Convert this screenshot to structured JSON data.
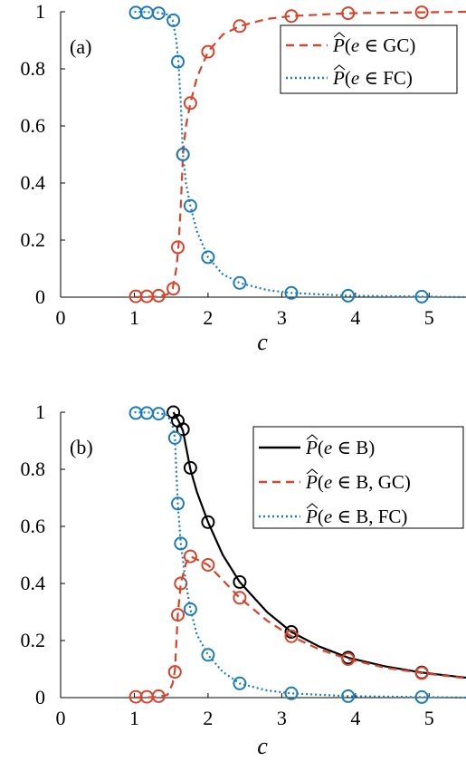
{
  "colors": {
    "gc": "#d9432a",
    "fc": "#1a7cc1",
    "b": "#000000"
  },
  "chart_data": [
    {
      "type": "line",
      "panel_label": "(a)",
      "xlabel": "c",
      "ylabel": "",
      "xlim": [
        0,
        5.5
      ],
      "ylim": [
        0,
        1
      ],
      "xticks": [
        0,
        1,
        2,
        3,
        4,
        5
      ],
      "yticks": [
        0,
        0.2,
        0.4,
        0.6,
        0.8,
        1
      ],
      "ytick_labels": [
        "0",
        "0.2",
        "0.4",
        "0.6",
        "0.8",
        "1"
      ],
      "legend_position": "top-right",
      "series": [
        {
          "key": "gc",
          "name": "P̂(e ∈ GC)",
          "legend_parts": {
            "func": "P",
            "var": "e",
            "set": "GC"
          },
          "style": "dashed",
          "color_key": "gc",
          "curve": [
            [
              1.0,
              0
            ],
            [
              1.3,
              0.002
            ],
            [
              1.45,
              0.01
            ],
            [
              1.52,
              0.03
            ],
            [
              1.57,
              0.1
            ],
            [
              1.6,
              0.18
            ],
            [
              1.63,
              0.32
            ],
            [
              1.66,
              0.5
            ],
            [
              1.7,
              0.6
            ],
            [
              1.76,
              0.68
            ],
            [
              1.85,
              0.77
            ],
            [
              2.0,
              0.86
            ],
            [
              2.2,
              0.92
            ],
            [
              2.43,
              0.95
            ],
            [
              2.8,
              0.975
            ],
            [
              3.13,
              0.985
            ],
            [
              3.9,
              0.995
            ],
            [
              4.9,
              0.998
            ],
            [
              5.5,
              1.0
            ]
          ],
          "markers": [
            [
              1.02,
              0.003
            ],
            [
              1.17,
              0.003
            ],
            [
              1.33,
              0.005
            ],
            [
              1.53,
              0.03
            ],
            [
              1.59,
              0.175
            ],
            [
              1.66,
              0.5
            ],
            [
              1.76,
              0.68
            ],
            [
              2.0,
              0.86
            ],
            [
              2.43,
              0.95
            ],
            [
              3.13,
              0.985
            ],
            [
              3.9,
              0.995
            ],
            [
              4.9,
              0.998
            ]
          ]
        },
        {
          "key": "fc",
          "name": "P̂(e ∈ FC)",
          "legend_parts": {
            "func": "P",
            "var": "e",
            "set": "FC"
          },
          "style": "dotted",
          "color_key": "fc",
          "curve": [
            [
              1.0,
              1.0
            ],
            [
              1.3,
              0.998
            ],
            [
              1.45,
              0.99
            ],
            [
              1.52,
              0.97
            ],
            [
              1.57,
              0.9
            ],
            [
              1.6,
              0.82
            ],
            [
              1.63,
              0.68
            ],
            [
              1.66,
              0.5
            ],
            [
              1.7,
              0.4
            ],
            [
              1.76,
              0.32
            ],
            [
              1.85,
              0.23
            ],
            [
              2.0,
              0.14
            ],
            [
              2.2,
              0.08
            ],
            [
              2.43,
              0.05
            ],
            [
              2.8,
              0.025
            ],
            [
              3.13,
              0.015
            ],
            [
              3.9,
              0.005
            ],
            [
              4.9,
              0.002
            ],
            [
              5.5,
              0
            ]
          ],
          "markers": [
            [
              1.02,
              0.997
            ],
            [
              1.17,
              0.997
            ],
            [
              1.33,
              0.995
            ],
            [
              1.53,
              0.97
            ],
            [
              1.59,
              0.825
            ],
            [
              1.66,
              0.5
            ],
            [
              1.76,
              0.32
            ],
            [
              2.0,
              0.14
            ],
            [
              2.43,
              0.05
            ],
            [
              3.13,
              0.015
            ],
            [
              3.9,
              0.005
            ],
            [
              4.9,
              0.002
            ]
          ]
        }
      ]
    },
    {
      "type": "line",
      "panel_label": "(b)",
      "xlabel": "c",
      "ylabel": "",
      "xlim": [
        0,
        5.5
      ],
      "ylim": [
        0,
        1
      ],
      "xticks": [
        0,
        1,
        2,
        3,
        4,
        5
      ],
      "yticks": [
        0,
        0.2,
        0.4,
        0.6,
        0.8,
        1
      ],
      "ytick_labels": [
        "0",
        "0.2",
        "0.4",
        "0.6",
        "0.8",
        "1"
      ],
      "legend_position": "top-right",
      "series": [
        {
          "key": "b",
          "name": "P̂(e ∈ B)",
          "legend_parts": {
            "func": "P",
            "var": "e",
            "set": "B"
          },
          "style": "solid",
          "color_key": "b",
          "curve": [
            [
              1.53,
              1.0
            ],
            [
              1.6,
              0.97
            ],
            [
              1.66,
              0.935
            ],
            [
              1.76,
              0.8
            ],
            [
              1.85,
              0.72
            ],
            [
              2.0,
              0.615
            ],
            [
              2.2,
              0.5
            ],
            [
              2.43,
              0.405
            ],
            [
              2.8,
              0.3
            ],
            [
              3.13,
              0.23
            ],
            [
              3.5,
              0.18
            ],
            [
              3.9,
              0.14
            ],
            [
              4.4,
              0.11
            ],
            [
              4.9,
              0.088
            ],
            [
              5.5,
              0.07
            ]
          ],
          "markers": [
            [
              1.53,
              1.0
            ],
            [
              1.59,
              0.97
            ],
            [
              1.66,
              0.94
            ],
            [
              1.76,
              0.805
            ],
            [
              2.0,
              0.615
            ],
            [
              2.43,
              0.405
            ],
            [
              3.13,
              0.23
            ],
            [
              3.9,
              0.14
            ],
            [
              4.9,
              0.088
            ]
          ]
        },
        {
          "key": "bgc",
          "name": "P̂(e ∈ B, GC)",
          "legend_parts": {
            "func": "P",
            "var": "e",
            "set": "B, GC"
          },
          "style": "dashed",
          "color_key": "gc",
          "curve": [
            [
              1.0,
              0
            ],
            [
              1.3,
              0.002
            ],
            [
              1.45,
              0.01
            ],
            [
              1.52,
              0.05
            ],
            [
              1.55,
              0.095
            ],
            [
              1.59,
              0.29
            ],
            [
              1.63,
              0.4
            ],
            [
              1.7,
              0.47
            ],
            [
              1.76,
              0.495
            ],
            [
              2.0,
              0.465
            ],
            [
              2.43,
              0.35
            ],
            [
              2.8,
              0.27
            ],
            [
              3.13,
              0.215
            ],
            [
              3.5,
              0.17
            ],
            [
              3.9,
              0.135
            ],
            [
              4.4,
              0.105
            ],
            [
              4.9,
              0.086
            ],
            [
              5.5,
              0.068
            ]
          ],
          "markers": [
            [
              1.02,
              0.003
            ],
            [
              1.17,
              0.003
            ],
            [
              1.33,
              0.005
            ],
            [
              1.55,
              0.09
            ],
            [
              1.59,
              0.29
            ],
            [
              1.63,
              0.4
            ],
            [
              1.76,
              0.495
            ],
            [
              2.0,
              0.465
            ],
            [
              2.43,
              0.35
            ],
            [
              3.13,
              0.215
            ],
            [
              3.9,
              0.135
            ],
            [
              4.9,
              0.086
            ]
          ]
        },
        {
          "key": "bfc",
          "name": "P̂(e ∈ B, FC)",
          "legend_parts": {
            "func": "P",
            "var": "e",
            "set": "B, FC"
          },
          "style": "dotted",
          "color_key": "fc",
          "curve": [
            [
              1.0,
              1.0
            ],
            [
              1.3,
              0.998
            ],
            [
              1.45,
              0.99
            ],
            [
              1.52,
              0.95
            ],
            [
              1.55,
              0.91
            ],
            [
              1.59,
              0.68
            ],
            [
              1.63,
              0.54
            ],
            [
              1.7,
              0.4
            ],
            [
              1.76,
              0.31
            ],
            [
              1.85,
              0.22
            ],
            [
              2.0,
              0.15
            ],
            [
              2.2,
              0.09
            ],
            [
              2.43,
              0.05
            ],
            [
              2.8,
              0.025
            ],
            [
              3.13,
              0.015
            ],
            [
              3.9,
              0.005
            ],
            [
              4.9,
              0.002
            ],
            [
              5.5,
              0
            ]
          ],
          "markers": [
            [
              1.02,
              0.997
            ],
            [
              1.17,
              0.997
            ],
            [
              1.33,
              0.995
            ],
            [
              1.55,
              0.91
            ],
            [
              1.59,
              0.68
            ],
            [
              1.63,
              0.54
            ],
            [
              1.76,
              0.31
            ],
            [
              2.0,
              0.15
            ],
            [
              2.43,
              0.05
            ],
            [
              3.13,
              0.015
            ],
            [
              3.9,
              0.005
            ],
            [
              4.9,
              0.002
            ]
          ]
        }
      ]
    }
  ]
}
